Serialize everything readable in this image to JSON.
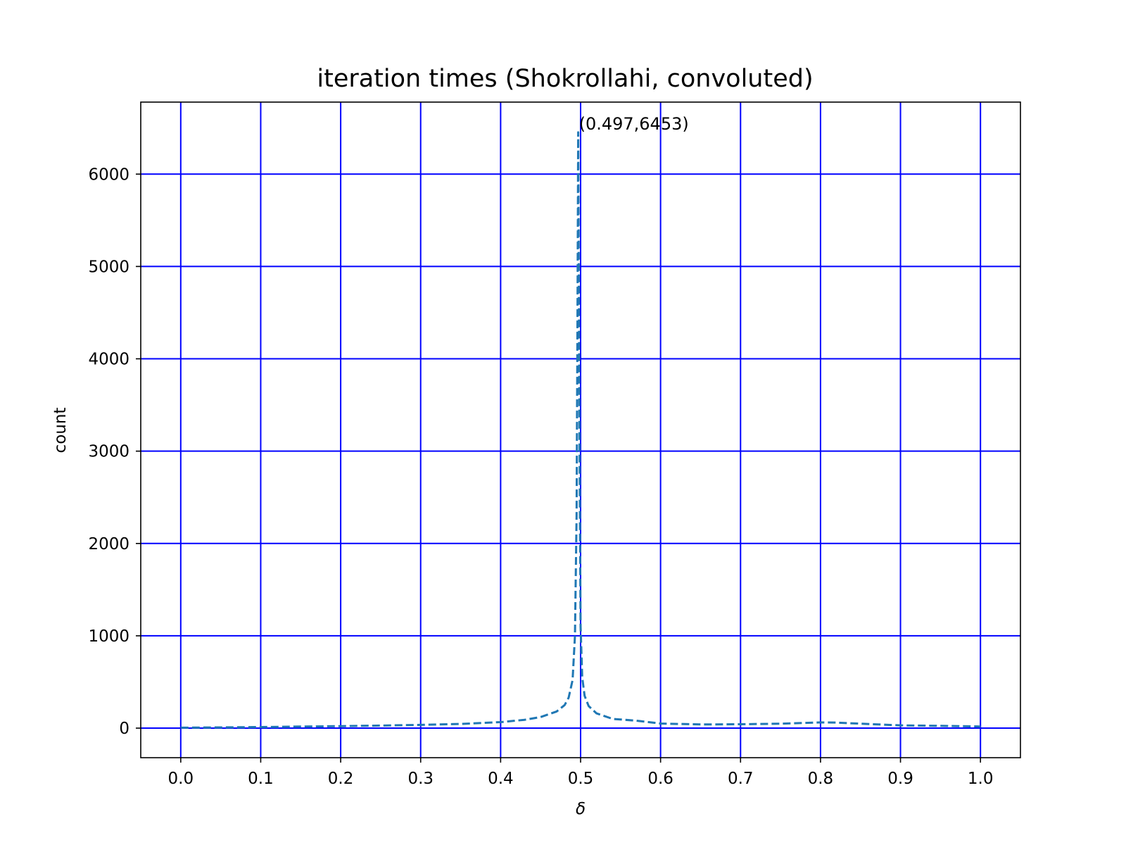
{
  "chart_data": {
    "type": "line",
    "title": "iteration times (Shokrollahi, convoluted)",
    "xlabel": "δ",
    "ylabel": "count",
    "xlim": [
      -0.05,
      1.05
    ],
    "ylim": [
      -320,
      6780
    ],
    "xticks": [
      "0.0",
      "0.1",
      "0.2",
      "0.3",
      "0.4",
      "0.5",
      "0.6",
      "0.7",
      "0.8",
      "0.9",
      "1.0"
    ],
    "yticks": [
      "0",
      "1000",
      "2000",
      "3000",
      "4000",
      "5000",
      "6000"
    ],
    "grid": true,
    "grid_color": "#0000ff",
    "line_color": "#1f77b4",
    "line_style": "dashed",
    "annotation": {
      "text": "(0.497,6453)",
      "x": 0.497,
      "y": 6453
    },
    "series": [
      {
        "x": [
          0.0,
          0.05,
          0.1,
          0.15,
          0.2,
          0.25,
          0.3,
          0.35,
          0.4,
          0.43,
          0.45,
          0.47,
          0.48,
          0.485,
          0.49,
          0.493,
          0.495,
          0.496,
          0.497,
          0.498,
          0.499,
          0.5,
          0.502,
          0.505,
          0.51,
          0.52,
          0.54,
          0.57,
          0.6,
          0.65,
          0.7,
          0.75,
          0.8,
          0.82,
          0.85,
          0.9,
          0.95,
          1.0
        ],
        "y": [
          5,
          8,
          12,
          17,
          22,
          28,
          35,
          45,
          65,
          90,
          120,
          180,
          250,
          330,
          520,
          1000,
          2300,
          4300,
          6453,
          4400,
          2500,
          1100,
          550,
          350,
          240,
          160,
          100,
          80,
          50,
          40,
          42,
          48,
          62,
          60,
          48,
          30,
          25,
          18
        ]
      }
    ]
  }
}
